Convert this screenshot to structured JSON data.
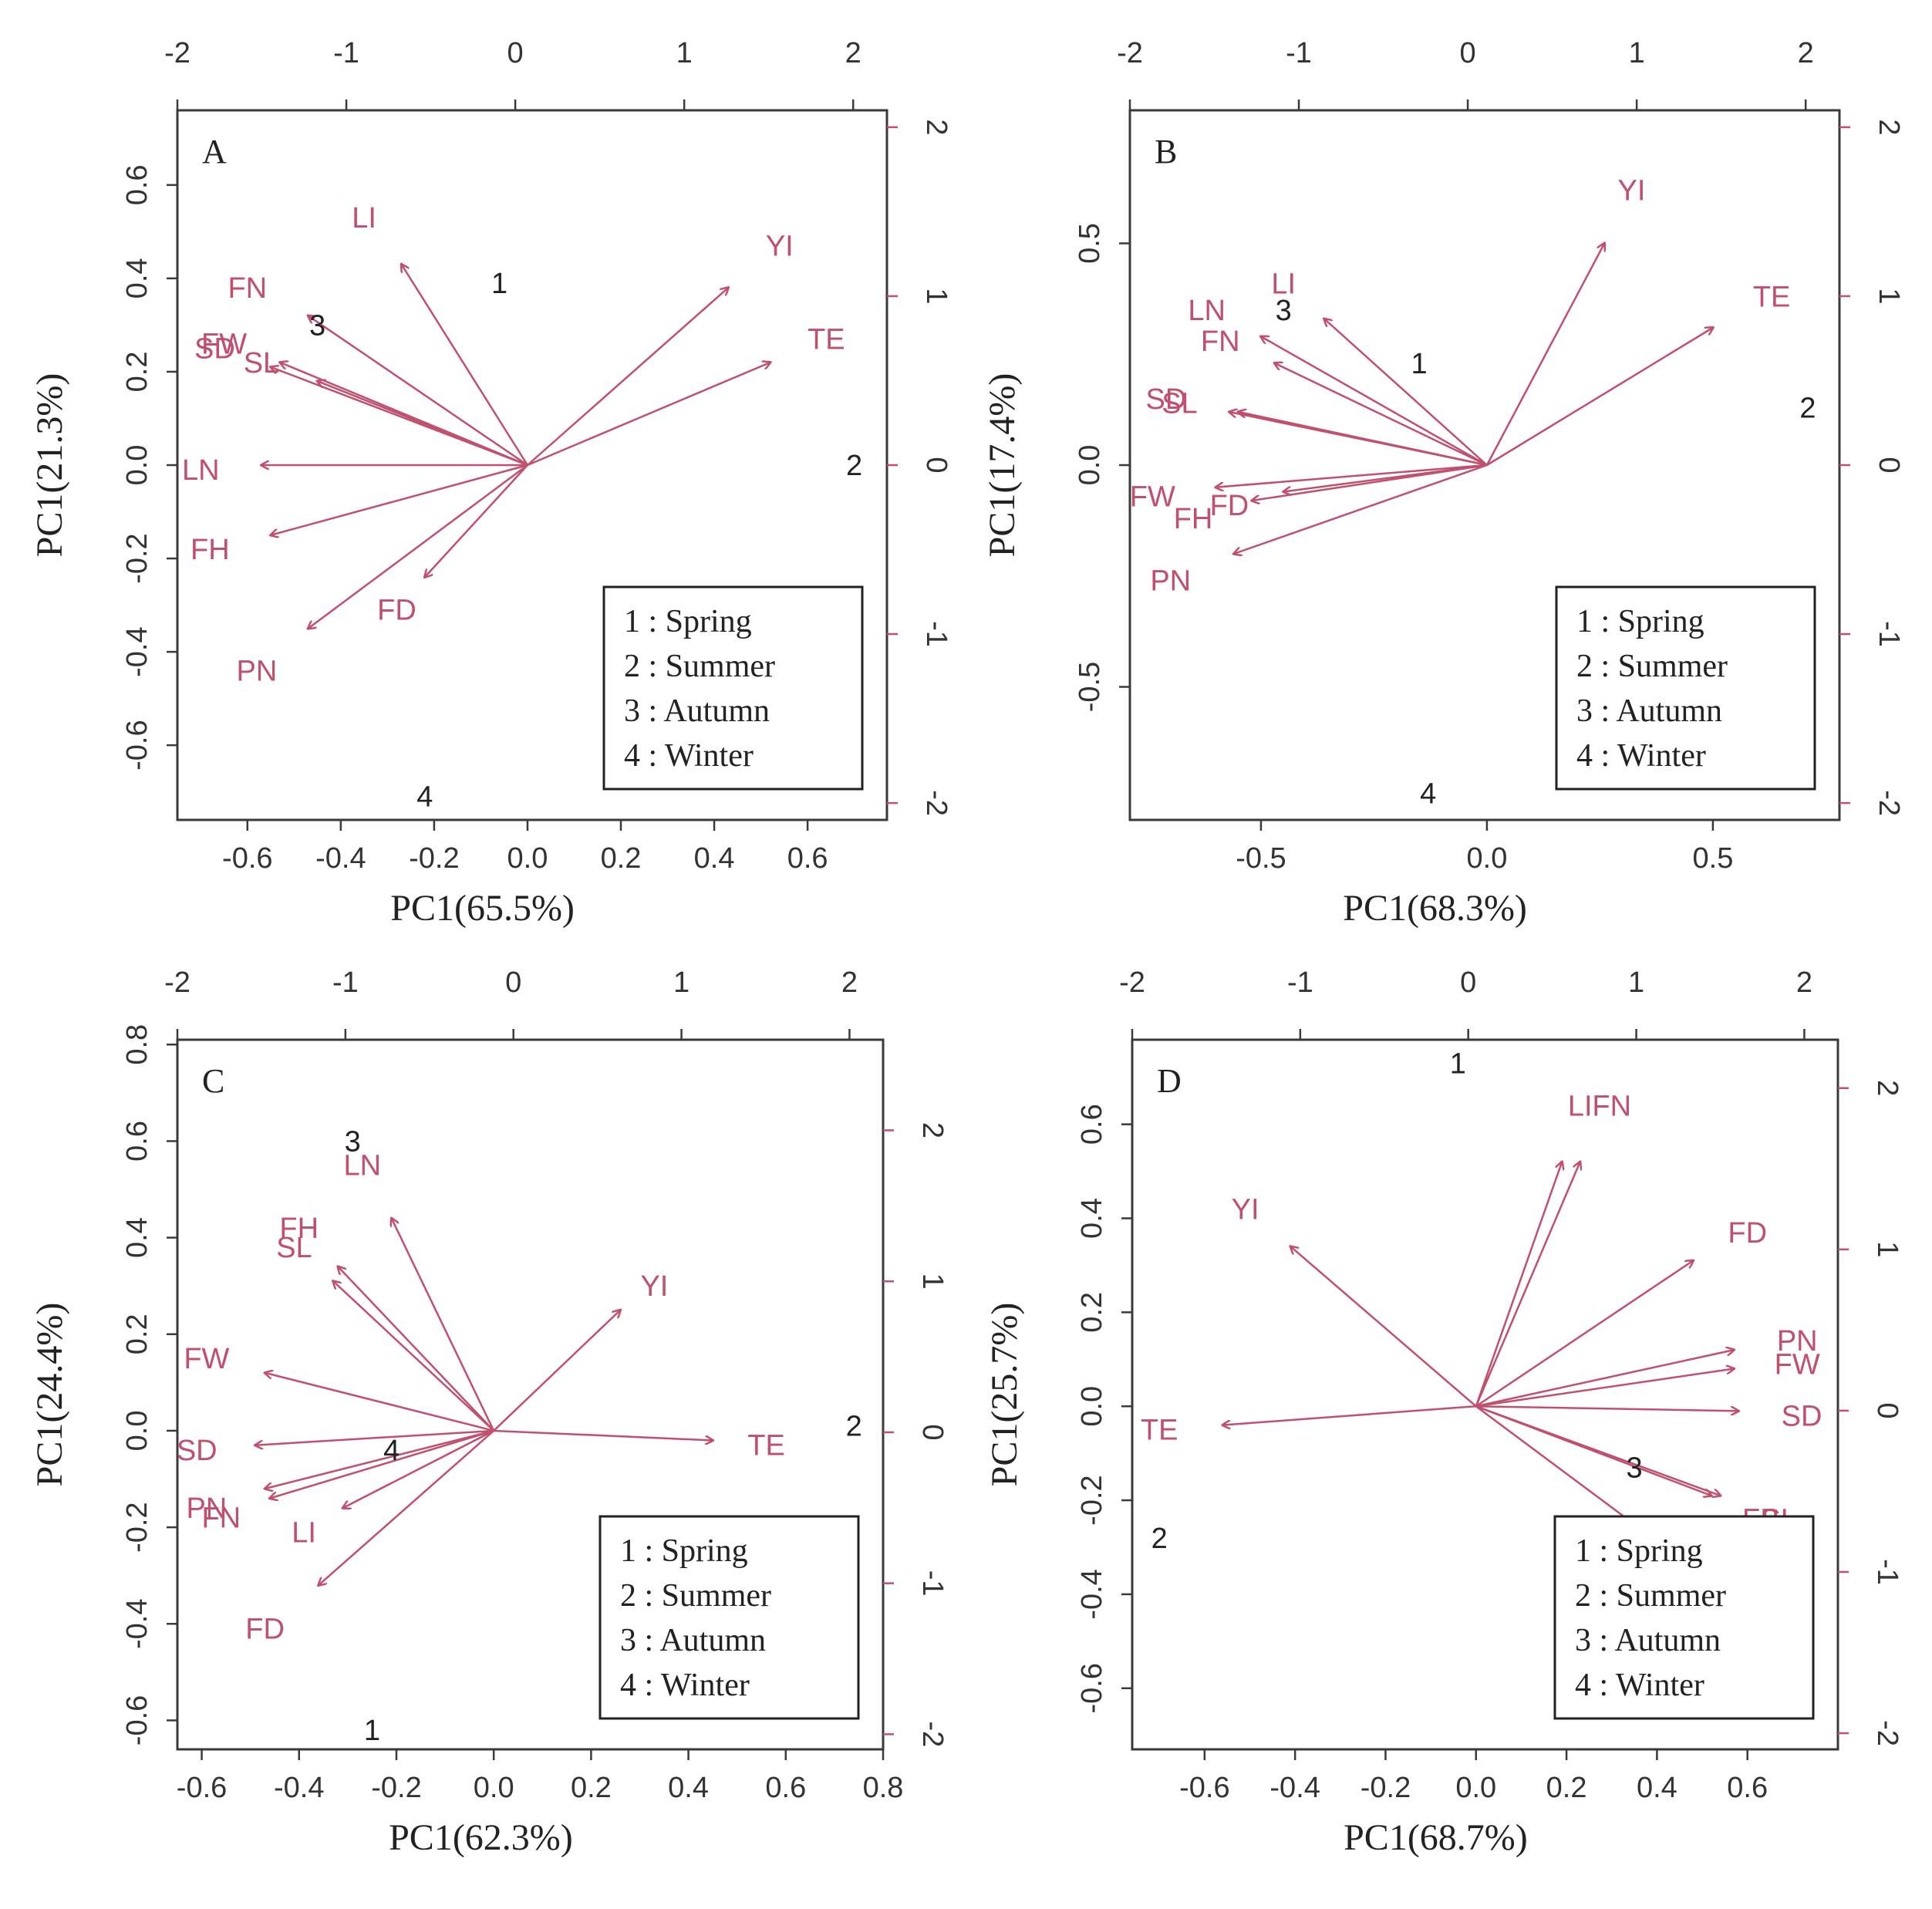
{
  "chart_data": [
    {
      "type": "scatter",
      "panel_label": "A",
      "xlabel": "PC1(65.5%)",
      "ylabel": "PC1(21.3%)",
      "xlim": [
        -0.75,
        0.77
      ],
      "ylim": [
        -0.76,
        0.76
      ],
      "x_ticks": [
        "-0.6",
        "-0.4",
        "-0.2",
        "0.0",
        "0.2",
        "0.4",
        "0.6"
      ],
      "y_ticks": [
        "-0.6",
        "-0.4",
        "-0.2",
        "0.0",
        "0.2",
        "0.4",
        "0.6"
      ],
      "top_axis": {
        "range": [
          -2.0,
          2.2
        ],
        "ticks": [
          "-2",
          "-1",
          "0",
          "1",
          "2"
        ]
      },
      "right_axis": {
        "range": [
          -2.1,
          2.1
        ],
        "ticks": [
          "-2",
          "-1",
          "0",
          "1",
          "2"
        ]
      },
      "loadings": [
        {
          "name": "LI",
          "x": -0.27,
          "y": 0.43,
          "lx": -0.35,
          "ly": 0.53
        },
        {
          "name": "FN",
          "x": -0.47,
          "y": 0.32,
          "lx": -0.6,
          "ly": 0.38
        },
        {
          "name": "SD",
          "x": -0.55,
          "y": 0.21,
          "lx": -0.67,
          "ly": 0.25
        },
        {
          "name": "FW",
          "x": -0.53,
          "y": 0.22,
          "lx": -0.65,
          "ly": 0.26
        },
        {
          "name": "SL",
          "x": -0.45,
          "y": 0.18,
          "lx": -0.57,
          "ly": 0.22
        },
        {
          "name": "LN",
          "x": -0.57,
          "y": 0.0,
          "lx": -0.7,
          "ly": -0.01
        },
        {
          "name": "FH",
          "x": -0.55,
          "y": -0.15,
          "lx": -0.68,
          "ly": -0.18
        },
        {
          "name": "PN",
          "x": -0.47,
          "y": -0.35,
          "lx": -0.58,
          "ly": -0.44
        },
        {
          "name": "FD",
          "x": -0.22,
          "y": -0.24,
          "lx": -0.28,
          "ly": -0.31
        },
        {
          "name": "YI",
          "x": 0.43,
          "y": 0.38,
          "lx": 0.54,
          "ly": 0.47
        },
        {
          "name": "TE",
          "x": 0.52,
          "y": 0.22,
          "lx": 0.64,
          "ly": 0.27
        }
      ],
      "scores": [
        {
          "label": "1",
          "x": -0.06,
          "y": 0.39
        },
        {
          "label": "2",
          "x": 0.7,
          "y": 0.0
        },
        {
          "label": "3",
          "x": -0.45,
          "y": 0.3
        },
        {
          "label": "4",
          "x": -0.22,
          "y": -0.71
        }
      ],
      "legend": [
        "1 : Spring",
        "2 : Summer",
        "3 : Autumn",
        "4 : Winter"
      ],
      "legend_position": "bottom-right"
    },
    {
      "type": "scatter",
      "panel_label": "B",
      "xlabel": "PC1(68.3%)",
      "ylabel": "PC1(17.4%)",
      "xlim": [
        -0.79,
        0.78
      ],
      "ylim": [
        -0.8,
        0.8
      ],
      "x_ticks": [
        "-0.5",
        "0.0",
        "0.5"
      ],
      "y_ticks": [
        "-0.5",
        "0.0",
        "0.5"
      ],
      "top_axis": {
        "range": [
          -2.0,
          2.2
        ],
        "ticks": [
          "-2",
          "-1",
          "0",
          "1",
          "2"
        ]
      },
      "right_axis": {
        "range": [
          -2.1,
          2.1
        ],
        "ticks": [
          "-2",
          "-1",
          "0",
          "1",
          "2"
        ]
      },
      "loadings": [
        {
          "name": "YI",
          "x": 0.26,
          "y": 0.5,
          "lx": 0.32,
          "ly": 0.62
        },
        {
          "name": "TE",
          "x": 0.5,
          "y": 0.31,
          "lx": 0.63,
          "ly": 0.38
        },
        {
          "name": "LI",
          "x": -0.36,
          "y": 0.33,
          "lx": -0.45,
          "ly": 0.41
        },
        {
          "name": "LN",
          "x": -0.5,
          "y": 0.29,
          "lx": -0.62,
          "ly": 0.35
        },
        {
          "name": "FN",
          "x": -0.47,
          "y": 0.23,
          "lx": -0.59,
          "ly": 0.28
        },
        {
          "name": "SD",
          "x": -0.57,
          "y": 0.12,
          "lx": -0.71,
          "ly": 0.15
        },
        {
          "name": "SL",
          "x": -0.55,
          "y": 0.12,
          "lx": -0.68,
          "ly": 0.14
        },
        {
          "name": "FW",
          "x": -0.6,
          "y": -0.05,
          "lx": -0.74,
          "ly": -0.07
        },
        {
          "name": "FD",
          "x": -0.52,
          "y": -0.08,
          "lx": -0.57,
          "ly": -0.09
        },
        {
          "name": "FH",
          "x": -0.45,
          "y": -0.06,
          "lx": -0.65,
          "ly": -0.12
        },
        {
          "name": "PN",
          "x": -0.56,
          "y": -0.2,
          "lx": -0.7,
          "ly": -0.26
        }
      ],
      "scores": [
        {
          "label": "1",
          "x": -0.15,
          "y": 0.23
        },
        {
          "label": "2",
          "x": 0.71,
          "y": 0.13
        },
        {
          "label": "3",
          "x": -0.45,
          "y": 0.35
        },
        {
          "label": "4",
          "x": -0.13,
          "y": -0.74
        }
      ],
      "legend": [
        "1 : Spring",
        "2 : Summer",
        "3 : Autumn",
        "4 : Winter"
      ],
      "legend_position": "bottom-right"
    },
    {
      "type": "scatter",
      "panel_label": "C",
      "xlabel": "PC1(62.3%)",
      "ylabel": "PC1(24.4%)",
      "xlim": [
        -0.65,
        0.8
      ],
      "ylim": [
        -0.66,
        0.81
      ],
      "x_ticks": [
        "-0.6",
        "-0.4",
        "-0.2",
        "0.0",
        "0.2",
        "0.4",
        "0.6",
        "0.8"
      ],
      "y_ticks": [
        "-0.6",
        "-0.4",
        "-0.2",
        "0.0",
        "0.2",
        "0.4",
        "0.6",
        "0.8"
      ],
      "top_axis": {
        "range": [
          -2.0,
          2.2
        ],
        "ticks": [
          "-2",
          "-1",
          "0",
          "1",
          "2"
        ]
      },
      "right_axis": {
        "range": [
          -2.1,
          2.6
        ],
        "ticks": [
          "-2",
          "-1",
          "0",
          "1",
          "2"
        ]
      },
      "loadings": [
        {
          "name": "LN",
          "x": -0.21,
          "y": 0.44,
          "lx": -0.27,
          "ly": 0.55
        },
        {
          "name": "FH",
          "x": -0.32,
          "y": 0.34,
          "lx": -0.4,
          "ly": 0.42
        },
        {
          "name": "SL",
          "x": -0.33,
          "y": 0.31,
          "lx": -0.41,
          "ly": 0.38
        },
        {
          "name": "FW",
          "x": -0.47,
          "y": 0.12,
          "lx": -0.59,
          "ly": 0.15
        },
        {
          "name": "SD",
          "x": -0.49,
          "y": -0.03,
          "lx": -0.61,
          "ly": -0.04
        },
        {
          "name": "PN",
          "x": -0.47,
          "y": -0.12,
          "lx": -0.59,
          "ly": -0.16
        },
        {
          "name": "FN",
          "x": -0.46,
          "y": -0.14,
          "lx": -0.56,
          "ly": -0.18
        },
        {
          "name": "LI",
          "x": -0.31,
          "y": -0.16,
          "lx": -0.39,
          "ly": -0.21
        },
        {
          "name": "FD",
          "x": -0.36,
          "y": -0.32,
          "lx": -0.47,
          "ly": -0.41
        },
        {
          "name": "YI",
          "x": 0.26,
          "y": 0.25,
          "lx": 0.33,
          "ly": 0.3
        },
        {
          "name": "TE",
          "x": 0.45,
          "y": -0.02,
          "lx": 0.56,
          "ly": -0.03
        }
      ],
      "scores": [
        {
          "label": "1",
          "x": -0.25,
          "y": -0.62
        },
        {
          "label": "2",
          "x": 0.74,
          "y": 0.01
        },
        {
          "label": "3",
          "x": -0.29,
          "y": 0.6
        },
        {
          "label": "4",
          "x": -0.21,
          "y": -0.04
        }
      ],
      "legend": [
        "1 : Spring",
        "2 : Summer",
        "3 : Autumn",
        "4 : Winter"
      ],
      "legend_position": "bottom-right"
    },
    {
      "type": "scatter",
      "panel_label": "D",
      "xlabel": "PC1(68.7%)",
      "ylabel": "PC1(25.7%)",
      "xlim": [
        -0.76,
        0.8
      ],
      "ylim": [
        -0.73,
        0.78
      ],
      "x_ticks": [
        "-0.6",
        "-0.4",
        "-0.2",
        "0.0",
        "0.2",
        "0.4",
        "0.6"
      ],
      "y_ticks": [
        "-0.6",
        "-0.4",
        "-0.2",
        "0.0",
        "0.2",
        "0.4",
        "0.6"
      ],
      "top_axis": {
        "range": [
          -2.0,
          2.2
        ],
        "ticks": [
          "-2",
          "-1",
          "0",
          "1",
          "2"
        ]
      },
      "right_axis": {
        "range": [
          -2.1,
          2.3
        ],
        "ticks": [
          "-2",
          "-1",
          "0",
          "1",
          "2"
        ]
      },
      "loadings": [
        {
          "name": "LI",
          "x": 0.19,
          "y": 0.52,
          "lx": 0.23,
          "ly": 0.64
        },
        {
          "name": "FN",
          "x": 0.23,
          "y": 0.52,
          "lx": 0.3,
          "ly": 0.64
        },
        {
          "name": "YI",
          "x": -0.41,
          "y": 0.34,
          "lx": -0.51,
          "ly": 0.42
        },
        {
          "name": "FD",
          "x": 0.48,
          "y": 0.31,
          "lx": 0.6,
          "ly": 0.37
        },
        {
          "name": "PN",
          "x": 0.57,
          "y": 0.12,
          "lx": 0.71,
          "ly": 0.14
        },
        {
          "name": "FW",
          "x": 0.57,
          "y": 0.08,
          "lx": 0.71,
          "ly": 0.09
        },
        {
          "name": "SD",
          "x": 0.58,
          "y": -0.01,
          "lx": 0.72,
          "ly": -0.02
        },
        {
          "name": "FB",
          "x": 0.52,
          "y": -0.19,
          "lx": 0.63,
          "ly": -0.24
        },
        {
          "name": "SL",
          "x": 0.54,
          "y": -0.19,
          "lx": 0.67,
          "ly": -0.24
        },
        {
          "name": "LN",
          "x": 0.46,
          "y": -0.33,
          "lx": 0.57,
          "ly": -0.42
        },
        {
          "name": "TE",
          "x": -0.56,
          "y": -0.04,
          "lx": -0.7,
          "ly": -0.05
        }
      ],
      "scores": [
        {
          "label": "1",
          "x": -0.04,
          "y": 0.73
        },
        {
          "label": "2",
          "x": -0.7,
          "y": -0.28
        },
        {
          "label": "3",
          "x": 0.35,
          "y": -0.13
        },
        {
          "label": "4",
          "x": 0.36,
          "y": -0.34
        }
      ],
      "legend": [
        "1 : Spring",
        "2 : Summer",
        "3 : Autumn",
        "4 : Winter"
      ],
      "legend_position": "bottom-right"
    }
  ]
}
